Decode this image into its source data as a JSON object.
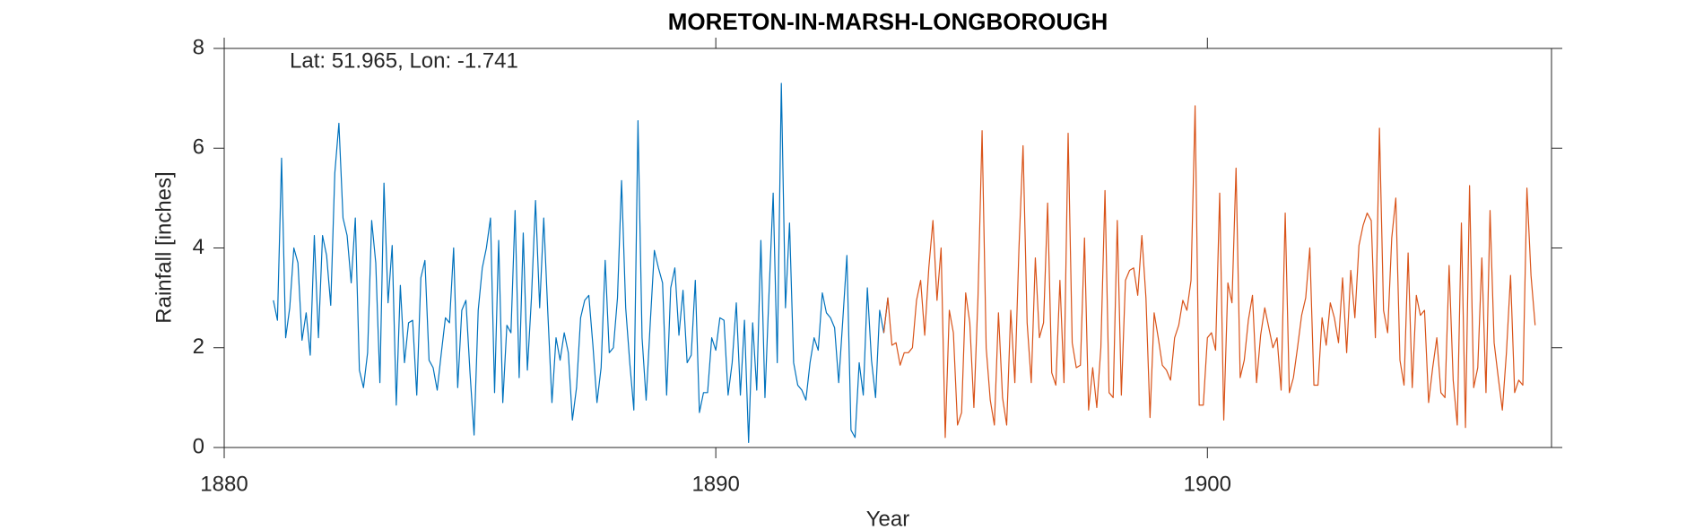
{
  "chart_data": {
    "type": "line",
    "title": "MORETON-IN-MARSH-LONGBOROUGH",
    "annotation": "Lat: 51.965, Lon: -1.741",
    "x_label": "Year",
    "y_label": "Rainfall [inches]",
    "xlim": [
      1880,
      1907
    ],
    "ylim": [
      0,
      8
    ],
    "xticks": [
      1880,
      1890,
      1900
    ],
    "yticks": [
      0,
      2,
      4,
      6,
      8
    ],
    "series": [
      {
        "color": "#0072BD",
        "x": [
          1881.0,
          1881.083,
          1881.167,
          1881.25,
          1881.333,
          1881.417,
          1881.5,
          1881.583,
          1881.667,
          1881.75,
          1881.833,
          1881.917,
          1882.0,
          1882.083,
          1882.167,
          1882.25,
          1882.333,
          1882.417,
          1882.5,
          1882.583,
          1882.667,
          1882.75,
          1882.833,
          1882.917,
          1883.0,
          1883.083,
          1883.167,
          1883.25,
          1883.333,
          1883.417,
          1883.5,
          1883.583,
          1883.667,
          1883.75,
          1883.833,
          1883.917,
          1884.0,
          1884.083,
          1884.167,
          1884.25,
          1884.333,
          1884.417,
          1884.5,
          1884.583,
          1884.667,
          1884.75,
          1884.833,
          1884.917,
          1885.0,
          1885.083,
          1885.167,
          1885.25,
          1885.333,
          1885.417,
          1885.5,
          1885.583,
          1885.667,
          1885.75,
          1885.833,
          1885.917,
          1886.0,
          1886.083,
          1886.167,
          1886.25,
          1886.333,
          1886.417,
          1886.5,
          1886.583,
          1886.667,
          1886.75,
          1886.833,
          1886.917,
          1887.0,
          1887.083,
          1887.167,
          1887.25,
          1887.333,
          1887.417,
          1887.5,
          1887.583,
          1887.667,
          1887.75,
          1887.833,
          1887.917,
          1888.0,
          1888.083,
          1888.167,
          1888.25,
          1888.333,
          1888.417,
          1888.5,
          1888.583,
          1888.667,
          1888.75,
          1888.833,
          1888.917,
          1889.0,
          1889.083,
          1889.167,
          1889.25,
          1889.333,
          1889.417,
          1889.5,
          1889.583,
          1889.667,
          1889.75,
          1889.833,
          1889.917,
          1890.0,
          1890.083,
          1890.167,
          1890.25,
          1890.333,
          1890.417,
          1890.5,
          1890.583,
          1890.667,
          1890.75,
          1890.833,
          1890.917,
          1891.0,
          1891.083,
          1891.167,
          1891.25,
          1891.333,
          1891.417,
          1891.5,
          1891.583,
          1891.667,
          1891.75,
          1891.833,
          1891.917,
          1892.0,
          1892.083,
          1892.167,
          1892.25,
          1892.333,
          1892.417,
          1892.5,
          1892.583,
          1892.667,
          1892.75,
          1892.833,
          1892.917,
          1893.0,
          1893.083,
          1893.167,
          1893.25,
          1893.333,
          1893.417,
          1893.5
        ],
        "values": [
          2.95,
          2.55,
          5.8,
          2.2,
          2.8,
          4.0,
          3.7,
          2.15,
          2.7,
          1.85,
          4.25,
          2.2,
          4.25,
          3.85,
          2.85,
          5.5,
          6.5,
          4.6,
          4.25,
          3.3,
          4.6,
          1.55,
          1.2,
          1.9,
          4.55,
          3.7,
          1.3,
          5.3,
          2.9,
          4.05,
          0.85,
          3.25,
          1.7,
          2.5,
          2.55,
          1.05,
          3.4,
          3.75,
          1.75,
          1.6,
          1.15,
          1.9,
          2.6,
          2.5,
          4.0,
          1.2,
          2.75,
          2.95,
          1.5,
          0.25,
          2.75,
          3.6,
          4.0,
          4.6,
          1.1,
          4.15,
          0.9,
          2.45,
          2.3,
          4.75,
          1.4,
          4.3,
          1.55,
          3.0,
          4.95,
          2.8,
          4.6,
          2.7,
          0.9,
          2.2,
          1.75,
          2.3,
          1.9,
          0.55,
          1.2,
          2.6,
          2.95,
          3.05,
          2.05,
          0.9,
          1.6,
          3.75,
          1.9,
          2.0,
          3.0,
          5.35,
          2.8,
          1.7,
          0.75,
          6.55,
          2.2,
          0.95,
          2.5,
          3.95,
          3.6,
          3.3,
          1.05,
          3.2,
          3.6,
          2.25,
          3.15,
          1.7,
          1.85,
          3.35,
          0.7,
          1.1,
          1.1,
          2.2,
          1.95,
          2.6,
          2.55,
          1.05,
          1.7,
          2.9,
          1.05,
          2.55,
          0.1,
          2.5,
          1.15,
          4.15,
          1.0,
          3.1,
          5.1,
          1.7,
          7.3,
          2.8,
          4.5,
          1.7,
          1.25,
          1.15,
          0.95,
          1.7,
          2.2,
          1.95,
          3.1,
          2.7,
          2.6,
          2.4,
          1.3,
          2.55,
          3.85,
          0.35,
          0.2,
          1.7,
          1.05,
          3.2,
          1.75,
          1.0,
          2.75,
          2.3,
          3.0
        ]
      },
      {
        "color": "#D95319",
        "x": [
          1893.417,
          1893.5,
          1893.583,
          1893.667,
          1893.75,
          1893.833,
          1893.917,
          1894.0,
          1894.083,
          1894.167,
          1894.25,
          1894.333,
          1894.417,
          1894.5,
          1894.583,
          1894.667,
          1894.75,
          1894.833,
          1894.917,
          1895.0,
          1895.083,
          1895.167,
          1895.25,
          1895.333,
          1895.417,
          1895.5,
          1895.583,
          1895.667,
          1895.75,
          1895.833,
          1895.917,
          1896.0,
          1896.083,
          1896.167,
          1896.25,
          1896.333,
          1896.417,
          1896.5,
          1896.583,
          1896.667,
          1896.75,
          1896.833,
          1896.917,
          1897.0,
          1897.083,
          1897.167,
          1897.25,
          1897.333,
          1897.417,
          1897.5,
          1897.583,
          1897.667,
          1897.75,
          1897.833,
          1897.917,
          1898.0,
          1898.083,
          1898.167,
          1898.25,
          1898.333,
          1898.417,
          1898.5,
          1898.583,
          1898.667,
          1898.75,
          1898.833,
          1898.917,
          1899.0,
          1899.083,
          1899.167,
          1899.25,
          1899.333,
          1899.417,
          1899.5,
          1899.583,
          1899.667,
          1899.75,
          1899.833,
          1899.917,
          1900.0,
          1900.083,
          1900.167,
          1900.25,
          1900.333,
          1900.417,
          1900.5,
          1900.583,
          1900.667,
          1900.75,
          1900.833,
          1900.917,
          1901.0,
          1901.083,
          1901.167,
          1901.25,
          1901.333,
          1901.417,
          1901.5,
          1901.583,
          1901.667,
          1901.75,
          1901.833,
          1901.917,
          1902.0,
          1902.083,
          1902.167,
          1902.25,
          1902.333,
          1902.417,
          1902.5,
          1902.583,
          1902.667,
          1902.75,
          1902.833,
          1902.917,
          1903.0,
          1903.083,
          1903.167,
          1903.25,
          1903.333,
          1903.417,
          1903.5,
          1903.583,
          1903.667,
          1903.75,
          1903.833,
          1903.917,
          1904.0,
          1904.083,
          1904.167,
          1904.25,
          1904.333,
          1904.417,
          1904.5,
          1904.583,
          1904.667,
          1904.75,
          1904.833,
          1904.917,
          1905.0,
          1905.083,
          1905.167,
          1905.25,
          1905.333,
          1905.417,
          1905.5,
          1905.583,
          1905.667,
          1905.75,
          1905.833,
          1905.917,
          1906.0,
          1906.083,
          1906.167,
          1906.25,
          1906.333,
          1906.417,
          1906.5,
          1906.583,
          1906.667
        ],
        "values": [
          2.3,
          3.0,
          2.05,
          2.1,
          1.65,
          1.9,
          1.9,
          2.0,
          2.95,
          3.35,
          2.25,
          3.6,
          4.55,
          2.95,
          4.0,
          0.2,
          2.75,
          2.3,
          0.45,
          0.7,
          3.1,
          2.5,
          0.8,
          3.0,
          6.35,
          2.0,
          0.95,
          0.45,
          2.7,
          1.0,
          0.45,
          2.75,
          1.3,
          4.0,
          6.05,
          2.5,
          1.3,
          3.8,
          2.2,
          2.5,
          4.9,
          1.5,
          1.25,
          3.35,
          1.3,
          6.3,
          2.1,
          1.6,
          1.65,
          4.2,
          0.75,
          1.6,
          0.8,
          2.0,
          5.15,
          1.1,
          1.0,
          4.55,
          1.05,
          3.35,
          3.55,
          3.6,
          3.05,
          4.25,
          3.0,
          0.6,
          2.7,
          2.2,
          1.65,
          1.55,
          1.35,
          2.2,
          2.45,
          2.95,
          2.75,
          3.35,
          6.85,
          0.85,
          0.85,
          2.2,
          2.3,
          1.95,
          5.1,
          0.55,
          3.3,
          2.9,
          5.6,
          1.4,
          1.75,
          2.55,
          3.05,
          1.3,
          2.25,
          2.8,
          2.4,
          2.0,
          2.2,
          1.15,
          4.7,
          1.1,
          1.4,
          2.0,
          2.65,
          3.0,
          4.0,
          1.25,
          1.25,
          2.6,
          2.05,
          2.9,
          2.6,
          2.1,
          3.4,
          1.9,
          3.55,
          2.6,
          4.05,
          4.45,
          4.7,
          4.55,
          2.2,
          6.4,
          2.75,
          2.3,
          4.2,
          5.0,
          1.75,
          1.25,
          3.9,
          1.2,
          3.05,
          2.65,
          2.75,
          0.9,
          1.6,
          2.2,
          1.1,
          1.0,
          3.65,
          1.35,
          0.45,
          4.5,
          0.4,
          5.25,
          1.2,
          1.6,
          3.8,
          1.1,
          4.75,
          2.1,
          1.4,
          0.75,
          1.9,
          3.45,
          1.1,
          1.35,
          1.25,
          5.2,
          3.45,
          2.45
        ]
      }
    ]
  }
}
